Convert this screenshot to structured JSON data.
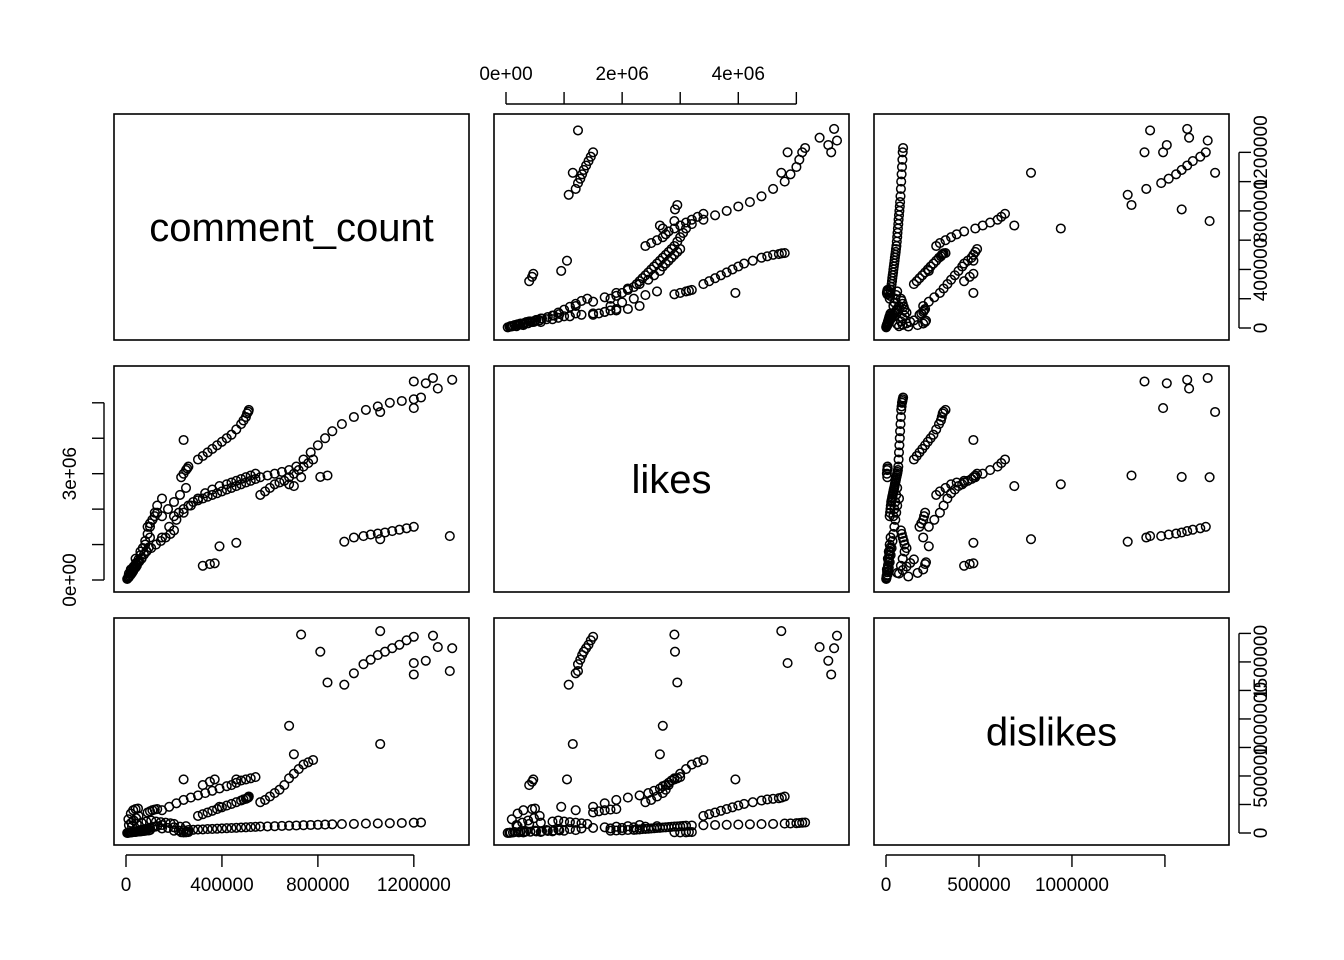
{
  "chart_data": {
    "type": "scatter",
    "variables": [
      "comment_count",
      "likes",
      "dislikes"
    ],
    "ranges": {
      "comment_count": [
        0,
        1380000
      ],
      "likes": [
        0,
        5700000
      ],
      "dislikes": [
        0,
        1780000
      ]
    },
    "ticks": {
      "comment_count": {
        "bottom": {
          "values": [
            0,
            400000,
            800000,
            1200000
          ],
          "labels": [
            "0",
            "400000",
            "800000",
            "1200000"
          ]
        },
        "right": {
          "values": [
            0,
            200000,
            400000,
            600000,
            800000,
            1000000,
            1200000
          ],
          "labels": [
            "0",
            "",
            "400000",
            "",
            "800000",
            "",
            "1200000"
          ]
        }
      },
      "likes": {
        "top": {
          "values": [
            0,
            1000000,
            2000000,
            3000000,
            4000000,
            5000000
          ],
          "labels": [
            "0e+00",
            "",
            "2e+06",
            "",
            "4e+06",
            ""
          ]
        },
        "left": {
          "values": [
            0,
            1000000,
            2000000,
            3000000,
            4000000,
            5000000
          ],
          "labels": [
            "0e+00",
            "",
            "",
            "3e+06",
            "",
            ""
          ]
        }
      },
      "dislikes": {
        "bottom": {
          "values": [
            0,
            500000,
            1000000,
            1500000
          ],
          "labels": [
            "0",
            "500000",
            "1000000",
            ""
          ]
        },
        "right": {
          "values": [
            0,
            250000,
            500000,
            750000,
            1000000,
            1250000,
            1500000,
            1750000
          ],
          "labels": [
            "0",
            "",
            "500000",
            "",
            "1000000",
            "",
            "1500000",
            ""
          ]
        }
      }
    },
    "observations": [
      [
        5000,
        30000,
        1000
      ],
      [
        12000,
        80000,
        3000
      ],
      [
        20000,
        150000,
        8000
      ],
      [
        30000,
        250000,
        12000
      ],
      [
        40000,
        350000,
        15000
      ],
      [
        50000,
        500000,
        20000
      ],
      [
        60000,
        700000,
        25000
      ],
      [
        70000,
        900000,
        30000
      ],
      [
        80000,
        1100000,
        35000
      ],
      [
        90000,
        1300000,
        40000
      ],
      [
        100000,
        1500000,
        45000
      ],
      [
        110000,
        1700000,
        50000
      ],
      [
        120000,
        1900000,
        55000
      ],
      [
        130000,
        2100000,
        60000
      ],
      [
        150000,
        2300000,
        70000
      ],
      [
        20000,
        300000,
        5000
      ],
      [
        40000,
        600000,
        10000
      ],
      [
        60000,
        800000,
        15000
      ],
      [
        80000,
        1000000,
        20000
      ],
      [
        100000,
        1200000,
        25000
      ],
      [
        10000,
        100000,
        120000
      ],
      [
        20000,
        200000,
        170000
      ],
      [
        30000,
        300000,
        200000
      ],
      [
        40000,
        450000,
        210000
      ],
      [
        50000,
        500000,
        215000
      ],
      [
        25000,
        200000,
        60000
      ],
      [
        45000,
        400000,
        80000
      ],
      [
        65000,
        600000,
        90000
      ],
      [
        85000,
        800000,
        100000
      ],
      [
        105000,
        900000,
        110000
      ],
      [
        125000,
        1000000,
        100000
      ],
      [
        145000,
        1100000,
        95000
      ],
      [
        165000,
        1200000,
        90000
      ],
      [
        185000,
        1300000,
        85000
      ],
      [
        200000,
        1400000,
        80000
      ],
      [
        150000,
        1800000,
        40000
      ],
      [
        175000,
        2000000,
        45000
      ],
      [
        200000,
        2200000,
        50000
      ],
      [
        225000,
        2400000,
        55000
      ],
      [
        250000,
        2600000,
        60000
      ],
      [
        90000,
        1500000,
        180000
      ],
      [
        100000,
        1600000,
        190000
      ],
      [
        110000,
        1700000,
        200000
      ],
      [
        120000,
        1800000,
        205000
      ],
      [
        130000,
        1900000,
        210000
      ],
      [
        8000,
        60000,
        2000
      ],
      [
        15000,
        120000,
        4000
      ],
      [
        25000,
        220000,
        6000
      ],
      [
        35000,
        320000,
        9000
      ],
      [
        45000,
        420000,
        11000
      ],
      [
        55000,
        520000,
        14000
      ],
      [
        65000,
        620000,
        16000
      ],
      [
        75000,
        720000,
        18000
      ],
      [
        85000,
        820000,
        21000
      ],
      [
        95000,
        920000,
        23000
      ],
      [
        12000,
        180000,
        70000
      ],
      [
        22000,
        280000,
        90000
      ],
      [
        32000,
        380000,
        110000
      ],
      [
        42000,
        480000,
        130000
      ],
      [
        52000,
        580000,
        150000
      ],
      [
        240000,
        3000000,
        5000
      ],
      [
        250000,
        3100000,
        6000
      ],
      [
        230000,
        2900000,
        7000
      ],
      [
        260000,
        3200000,
        8000
      ],
      [
        255000,
        3150000,
        9000
      ],
      [
        300000,
        3400000,
        150000
      ],
      [
        320000,
        3500000,
        165000
      ],
      [
        340000,
        3600000,
        180000
      ],
      [
        360000,
        3700000,
        195000
      ],
      [
        380000,
        3800000,
        210000
      ],
      [
        400000,
        3900000,
        225000
      ],
      [
        420000,
        4000000,
        240000
      ],
      [
        440000,
        4100000,
        255000
      ],
      [
        460000,
        4250000,
        270000
      ],
      [
        480000,
        4400000,
        285000
      ],
      [
        490000,
        4500000,
        295000
      ],
      [
        500000,
        4600000,
        300000
      ],
      [
        505000,
        4700000,
        305000
      ],
      [
        510000,
        4750000,
        310000
      ],
      [
        512000,
        4800000,
        320000
      ],
      [
        150000,
        1200000,
        200000
      ],
      [
        180000,
        1500000,
        230000
      ],
      [
        210000,
        1700000,
        260000
      ],
      [
        240000,
        1900000,
        290000
      ],
      [
        270000,
        2100000,
        310000
      ],
      [
        300000,
        2300000,
        330000
      ],
      [
        330000,
        2450000,
        350000
      ],
      [
        360000,
        2550000,
        370000
      ],
      [
        390000,
        2650000,
        390000
      ],
      [
        420000,
        2700000,
        410000
      ],
      [
        440000,
        2750000,
        420000
      ],
      [
        460000,
        2800000,
        440000
      ],
      [
        480000,
        2850000,
        460000
      ],
      [
        500000,
        2900000,
        470000
      ],
      [
        520000,
        2950000,
        480000
      ],
      [
        540000,
        3000000,
        490000
      ],
      [
        200000,
        1800000,
        20000
      ],
      [
        220000,
        1900000,
        22000
      ],
      [
        240000,
        2000000,
        24000
      ],
      [
        260000,
        2100000,
        26000
      ],
      [
        280000,
        2200000,
        28000
      ],
      [
        300000,
        2250000,
        30000
      ],
      [
        320000,
        2300000,
        32000
      ],
      [
        340000,
        2350000,
        34000
      ],
      [
        360000,
        2400000,
        36000
      ],
      [
        380000,
        2450000,
        38000
      ],
      [
        400000,
        2500000,
        40000
      ],
      [
        420000,
        2550000,
        42000
      ],
      [
        440000,
        2600000,
        44000
      ],
      [
        460000,
        2650000,
        46000
      ],
      [
        480000,
        2700000,
        48000
      ],
      [
        500000,
        2750000,
        50000
      ],
      [
        520000,
        2800000,
        52000
      ],
      [
        540000,
        2850000,
        54000
      ],
      [
        560000,
        2900000,
        56000
      ],
      [
        590000,
        2950000,
        58000
      ],
      [
        620000,
        3000000,
        60000
      ],
      [
        650000,
        3050000,
        62000
      ],
      [
        680000,
        3100000,
        64000
      ],
      [
        710000,
        3200000,
        66000
      ],
      [
        740000,
        3400000,
        68000
      ],
      [
        770000,
        3600000,
        70000
      ],
      [
        800000,
        3800000,
        72000
      ],
      [
        830000,
        4000000,
        74000
      ],
      [
        860000,
        4200000,
        76000
      ],
      [
        900000,
        4400000,
        78000
      ],
      [
        950000,
        4600000,
        80000
      ],
      [
        1000000,
        4800000,
        82000
      ],
      [
        1050000,
        4900000,
        84000
      ],
      [
        1100000,
        5000000,
        86000
      ],
      [
        1150000,
        5050000,
        88000
      ],
      [
        1200000,
        5100000,
        90000
      ],
      [
        1230000,
        5150000,
        92000
      ],
      [
        560000,
        2400000,
        270000
      ],
      [
        580000,
        2500000,
        290000
      ],
      [
        600000,
        2600000,
        320000
      ],
      [
        620000,
        2700000,
        350000
      ],
      [
        640000,
        2750000,
        380000
      ],
      [
        660000,
        2800000,
        420000
      ],
      [
        680000,
        2900000,
        480000
      ],
      [
        700000,
        3000000,
        520000
      ],
      [
        720000,
        3100000,
        560000
      ],
      [
        740000,
        3200000,
        600000
      ],
      [
        760000,
        3300000,
        620000
      ],
      [
        780000,
        3400000,
        640000
      ],
      [
        910000,
        1080000,
        1300000
      ],
      [
        950000,
        1200000,
        1400000
      ],
      [
        990000,
        1240000,
        1480000
      ],
      [
        1020000,
        1280000,
        1520000
      ],
      [
        1050000,
        1310000,
        1560000
      ],
      [
        1080000,
        1340000,
        1590000
      ],
      [
        1110000,
        1380000,
        1620000
      ],
      [
        1140000,
        1420000,
        1650000
      ],
      [
        1170000,
        1460000,
        1690000
      ],
      [
        1200000,
        1500000,
        1720000
      ],
      [
        680000,
        2700000,
        940000
      ],
      [
        700000,
        2650000,
        690000
      ],
      [
        810000,
        2910000,
        1590000
      ],
      [
        730000,
        2900000,
        1740000
      ],
      [
        840000,
        2950000,
        1320000
      ],
      [
        1060000,
        4740000,
        1770000
      ],
      [
        1200000,
        5600000,
        1390000
      ],
      [
        1250000,
        5550000,
        1510000
      ],
      [
        1300000,
        5400000,
        1630000
      ],
      [
        1360000,
        5650000,
        1620000
      ],
      [
        1200000,
        4850000,
        1490000
      ],
      [
        1280000,
        5700000,
        1730000
      ],
      [
        1060000,
        1150000,
        780000
      ],
      [
        1350000,
        1240000,
        1420000
      ],
      [
        390000,
        950000,
        230000
      ],
      [
        320000,
        400000,
        420000
      ],
      [
        350000,
        450000,
        450000
      ],
      [
        370000,
        470000,
        470000
      ],
      [
        460000,
        1050000,
        470000
      ],
      [
        240000,
        3950000,
        470000
      ]
    ]
  }
}
